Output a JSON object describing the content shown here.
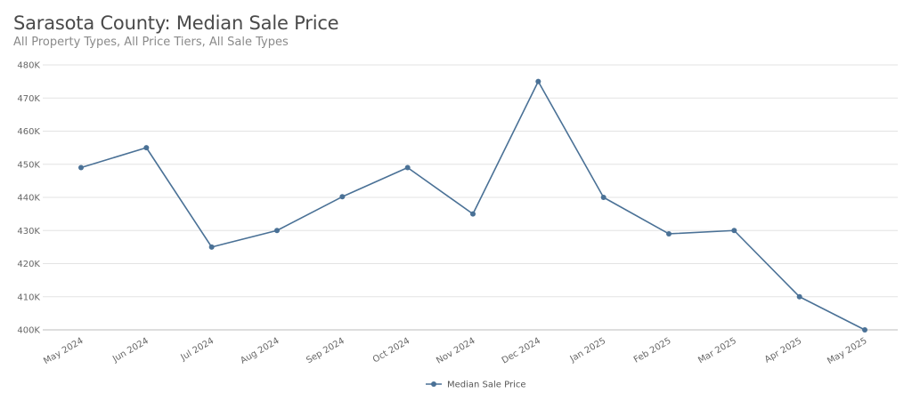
{
  "chart_data": {
    "type": "line",
    "title": "Sarasota County: Median Sale Price",
    "subtitle": "All Property Types, All Price Tiers, All Sale Types",
    "categories": [
      "May 2024",
      "Jun 2024",
      "Jul 2024",
      "Aug 2024",
      "Sep 2024",
      "Oct 2024",
      "Nov 2024",
      "Dec 2024",
      "Jan 2025",
      "Feb 2025",
      "Mar 2025",
      "Apr 2025",
      "May 2025"
    ],
    "series": [
      {
        "name": "Median Sale Price",
        "values": [
          449000,
          455000,
          425000,
          430000,
          440200,
          449000,
          435000,
          475000,
          440000,
          429000,
          430000,
          410000,
          400000
        ],
        "color": "#4a7196"
      }
    ],
    "ylim": [
      400000,
      480000
    ],
    "yticks": [
      400000,
      410000,
      420000,
      430000,
      440000,
      450000,
      460000,
      470000,
      480000
    ],
    "ytick_labels": [
      "400K",
      "410K",
      "420K",
      "430K",
      "440K",
      "450K",
      "460K",
      "470K",
      "480K"
    ],
    "grid": true,
    "legend": "bottom-center",
    "xlabel": "",
    "ylabel": ""
  }
}
